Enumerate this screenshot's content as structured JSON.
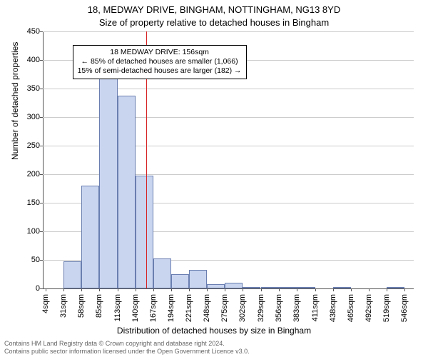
{
  "title_line1": "18, MEDWAY DRIVE, BINGHAM, NOTTINGHAM, NG13 8YD",
  "title_line2": "Size of property relative to detached houses in Bingham",
  "ylabel": "Number of detached properties",
  "xlabel": "Distribution of detached houses by size in Bingham",
  "chart": {
    "type": "histogram",
    "background_color": "#ffffff",
    "grid_color": "#cccccc",
    "axis_color": "#555555",
    "bar_fill": "#c9d4ef",
    "bar_border": "#6a7fb0",
    "x_tick_labels": [
      "4sqm",
      "31sqm",
      "58sqm",
      "85sqm",
      "113sqm",
      "140sqm",
      "167sqm",
      "194sqm",
      "221sqm",
      "248sqm",
      "275sqm",
      "302sqm",
      "329sqm",
      "356sqm",
      "383sqm",
      "411sqm",
      "438sqm",
      "465sqm",
      "492sqm",
      "519sqm",
      "546sqm"
    ],
    "x_tick_values": [
      4,
      31,
      58,
      85,
      113,
      140,
      167,
      194,
      221,
      248,
      275,
      302,
      329,
      356,
      383,
      411,
      438,
      465,
      492,
      519,
      546
    ],
    "xlim": [
      0,
      560
    ],
    "ylim": [
      0,
      450
    ],
    "ytick_step": 50,
    "bars": [
      {
        "x0": 31,
        "x1": 58,
        "count": 47
      },
      {
        "x0": 58,
        "x1": 85,
        "count": 180
      },
      {
        "x0": 85,
        "x1": 113,
        "count": 370
      },
      {
        "x0": 113,
        "x1": 140,
        "count": 338
      },
      {
        "x0": 140,
        "x1": 167,
        "count": 198
      },
      {
        "x0": 167,
        "x1": 194,
        "count": 52
      },
      {
        "x0": 194,
        "x1": 221,
        "count": 25
      },
      {
        "x0": 221,
        "x1": 248,
        "count": 33
      },
      {
        "x0": 248,
        "x1": 275,
        "count": 7
      },
      {
        "x0": 275,
        "x1": 302,
        "count": 10
      },
      {
        "x0": 302,
        "x1": 329,
        "count": 3
      },
      {
        "x0": 329,
        "x1": 356,
        "count": 3
      },
      {
        "x0": 356,
        "x1": 383,
        "count": 1
      },
      {
        "x0": 383,
        "x1": 411,
        "count": 1
      },
      {
        "x0": 438,
        "x1": 465,
        "count": 2
      },
      {
        "x0": 519,
        "x1": 546,
        "count": 1
      }
    ],
    "reference_line": {
      "x": 156,
      "color": "#d62222"
    },
    "annotation": {
      "line1": "18 MEDWAY DRIVE: 156sqm",
      "line2": "← 85% of detached houses are smaller (1,066)",
      "line3": "15% of semi-detached houses are larger (182) →",
      "border": "#000000",
      "bg": "#ffffff",
      "fontsize": 10.5,
      "pos_x_plotfrac": 0.08,
      "pos_y_value": 426
    }
  },
  "attribution": {
    "line1": "Contains HM Land Registry data © Crown copyright and database right 2024.",
    "line2": "Contains public sector information licensed under the Open Government Licence v3.0."
  }
}
